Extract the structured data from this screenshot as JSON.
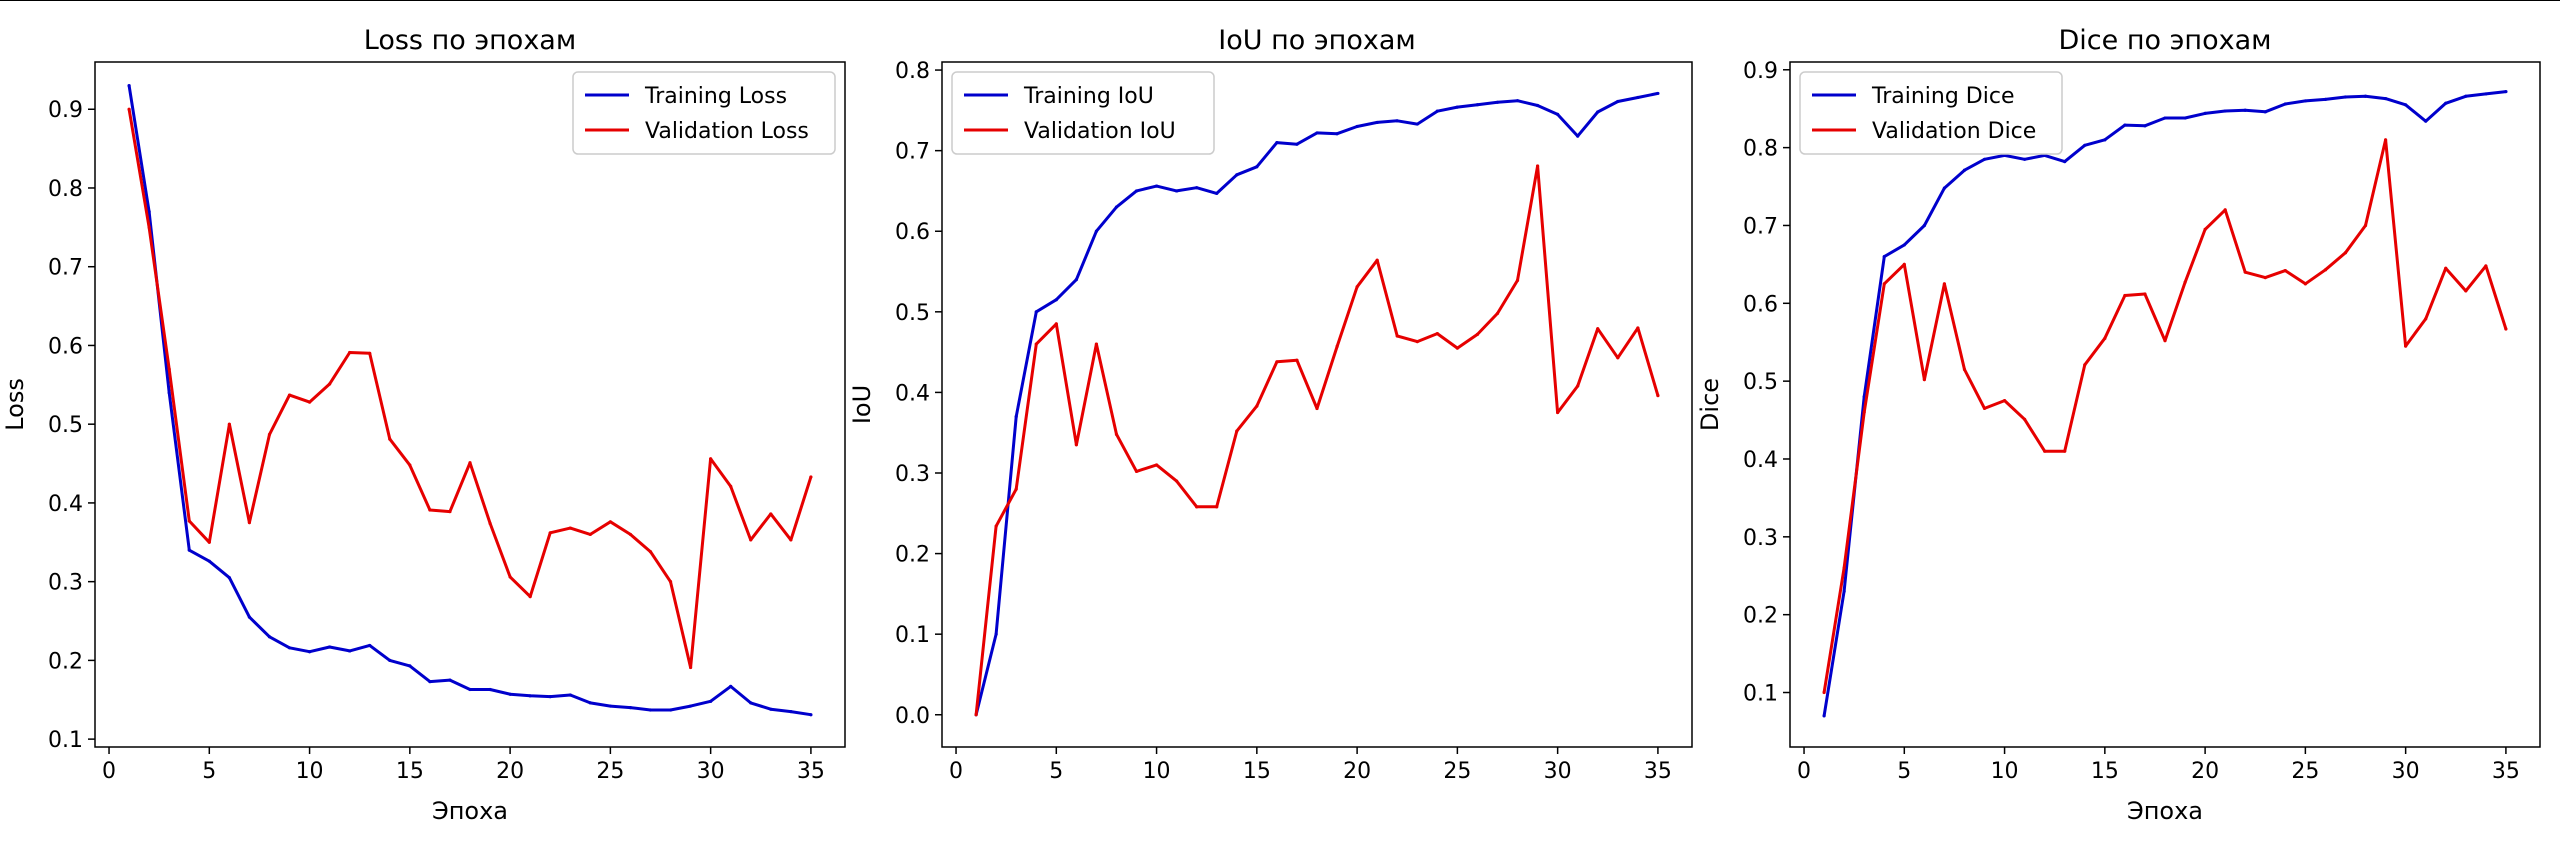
{
  "chart_data": [
    {
      "type": "line",
      "title": "Loss по эпохам",
      "xlabel": "Эпоха",
      "ylabel": "Loss",
      "xlim": [
        -0.7,
        36.7
      ],
      "ylim": [
        0.09,
        0.96
      ],
      "xticks": [
        0,
        5,
        10,
        15,
        20,
        25,
        30,
        35
      ],
      "yticks": [
        0.1,
        0.2,
        0.3,
        0.4,
        0.5,
        0.6,
        0.7,
        0.8,
        0.9
      ],
      "ytick_labels": [
        "0.1",
        "0.2",
        "0.3",
        "0.4",
        "0.5",
        "0.6",
        "0.7",
        "0.8",
        "0.9"
      ],
      "grid": false,
      "legend": "top-right",
      "x": [
        1,
        2,
        3,
        4,
        5,
        6,
        7,
        8,
        9,
        10,
        11,
        12,
        13,
        14,
        15,
        16,
        17,
        18,
        19,
        20,
        21,
        22,
        23,
        24,
        25,
        26,
        27,
        28,
        29,
        30,
        31,
        32,
        33,
        34,
        35
      ],
      "series": [
        {
          "name": "Training Loss",
          "color": "#0000cc",
          "values": [
            0.93,
            0.77,
            0.54,
            0.34,
            0.326,
            0.305,
            0.255,
            0.23,
            0.216,
            0.211,
            0.217,
            0.212,
            0.219,
            0.2,
            0.193,
            0.173,
            0.175,
            0.163,
            0.163,
            0.157,
            0.155,
            0.154,
            0.156,
            0.146,
            0.142,
            0.14,
            0.137,
            0.137,
            0.142,
            0.148,
            0.167,
            0.146,
            0.138,
            0.135,
            0.131
          ]
        },
        {
          "name": "Validation Loss",
          "color": "#e60000",
          "values": [
            0.9,
            0.75,
            0.57,
            0.377,
            0.35,
            0.5,
            0.375,
            0.487,
            0.537,
            0.528,
            0.551,
            0.591,
            0.59,
            0.481,
            0.448,
            0.391,
            0.389,
            0.451,
            0.374,
            0.306,
            0.281,
            0.362,
            0.368,
            0.36,
            0.376,
            0.36,
            0.338,
            0.3,
            0.191,
            0.456,
            0.421,
            0.353,
            0.386,
            0.353,
            0.433
          ]
        }
      ]
    },
    {
      "type": "line",
      "title": "IoU по эпохам",
      "xlabel": "",
      "ylabel": "IoU",
      "xlim": [
        -0.7,
        36.7
      ],
      "ylim": [
        -0.04,
        0.81
      ],
      "xticks": [
        0,
        5,
        10,
        15,
        20,
        25,
        30,
        35
      ],
      "yticks": [
        0.0,
        0.1,
        0.2,
        0.3,
        0.4,
        0.5,
        0.6,
        0.7,
        0.8
      ],
      "ytick_labels": [
        "0.0",
        "0.1",
        "0.2",
        "0.3",
        "0.4",
        "0.5",
        "0.6",
        "0.7",
        "0.8"
      ],
      "grid": false,
      "legend": "top-left",
      "x": [
        1,
        2,
        3,
        4,
        5,
        6,
        7,
        8,
        9,
        10,
        11,
        12,
        13,
        14,
        15,
        16,
        17,
        18,
        19,
        20,
        21,
        22,
        23,
        24,
        25,
        26,
        27,
        28,
        29,
        30,
        31,
        32,
        33,
        34,
        35
      ],
      "series": [
        {
          "name": "Training IoU",
          "color": "#0000cc",
          "values": [
            0.0,
            0.1,
            0.37,
            0.5,
            0.515,
            0.54,
            0.6,
            0.63,
            0.65,
            0.656,
            0.65,
            0.654,
            0.647,
            0.67,
            0.68,
            0.71,
            0.708,
            0.722,
            0.721,
            0.73,
            0.735,
            0.737,
            0.733,
            0.749,
            0.754,
            0.757,
            0.76,
            0.762,
            0.756,
            0.745,
            0.718,
            0.748,
            0.761,
            0.766,
            0.771
          ]
        },
        {
          "name": "Validation IoU",
          "color": "#e60000",
          "values": [
            0.0,
            0.234,
            0.28,
            0.46,
            0.485,
            0.335,
            0.46,
            0.348,
            0.302,
            0.31,
            0.29,
            0.258,
            0.258,
            0.352,
            0.383,
            0.438,
            0.44,
            0.38,
            0.457,
            0.531,
            0.564,
            0.47,
            0.463,
            0.473,
            0.455,
            0.472,
            0.498,
            0.539,
            0.681,
            0.375,
            0.408,
            0.479,
            0.443,
            0.48,
            0.396
          ]
        }
      ]
    },
    {
      "type": "line",
      "title": "Dice по эпохам",
      "xlabel": "Эпоха",
      "ylabel": "Dice",
      "xlim": [
        -0.7,
        36.7
      ],
      "ylim": [
        0.03,
        0.91
      ],
      "xticks": [
        0,
        5,
        10,
        15,
        20,
        25,
        30,
        35
      ],
      "yticks": [
        0.1,
        0.2,
        0.3,
        0.4,
        0.5,
        0.6,
        0.7,
        0.8,
        0.9
      ],
      "ytick_labels": [
        "0.1",
        "0.2",
        "0.3",
        "0.4",
        "0.5",
        "0.6",
        "0.7",
        "0.8",
        "0.9"
      ],
      "grid": false,
      "legend": "top-left",
      "x": [
        1,
        2,
        3,
        4,
        5,
        6,
        7,
        8,
        9,
        10,
        11,
        12,
        13,
        14,
        15,
        16,
        17,
        18,
        19,
        20,
        21,
        22,
        23,
        24,
        25,
        26,
        27,
        28,
        29,
        30,
        31,
        32,
        33,
        34,
        35
      ],
      "series": [
        {
          "name": "Training Dice",
          "color": "#0000cc",
          "values": [
            0.07,
            0.23,
            0.48,
            0.66,
            0.675,
            0.7,
            0.748,
            0.771,
            0.785,
            0.79,
            0.785,
            0.79,
            0.782,
            0.803,
            0.81,
            0.829,
            0.828,
            0.838,
            0.838,
            0.844,
            0.847,
            0.848,
            0.846,
            0.856,
            0.86,
            0.862,
            0.865,
            0.866,
            0.863,
            0.855,
            0.834,
            0.857,
            0.866,
            0.869,
            0.872
          ]
        },
        {
          "name": "Validation Dice",
          "color": "#e60000",
          "values": [
            0.1,
            0.26,
            0.46,
            0.625,
            0.65,
            0.502,
            0.625,
            0.515,
            0.465,
            0.475,
            0.451,
            0.41,
            0.41,
            0.521,
            0.555,
            0.61,
            0.612,
            0.552,
            0.627,
            0.695,
            0.72,
            0.64,
            0.633,
            0.642,
            0.625,
            0.643,
            0.665,
            0.7,
            0.81,
            0.545,
            0.58,
            0.645,
            0.616,
            0.648,
            0.567
          ]
        }
      ]
    }
  ]
}
